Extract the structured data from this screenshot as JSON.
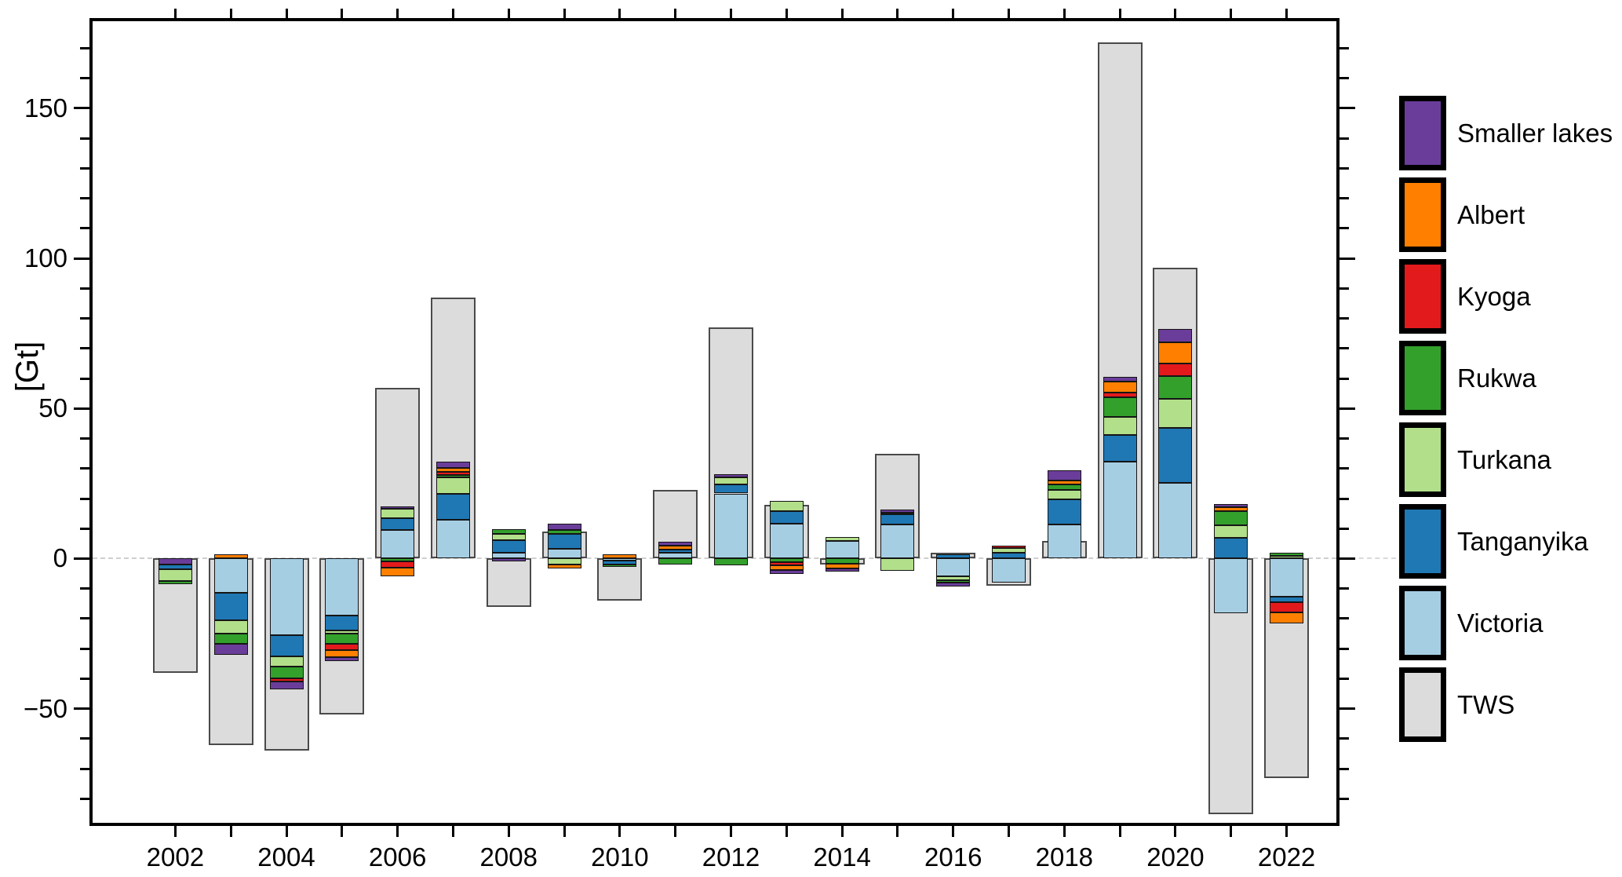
{
  "chart_data": {
    "type": "bar",
    "title": "",
    "xlabel": "",
    "ylabel": "[Gt]",
    "ylim": [
      -88,
      179
    ],
    "grid": "zero-line-dashed-only",
    "legend_position": "right-outside",
    "yticks_major": [
      {
        "value": 150,
        "label": "150"
      },
      {
        "value": 100,
        "label": "100"
      },
      {
        "value": 50,
        "label": "50"
      },
      {
        "value": 0,
        "label": "0"
      },
      {
        "value": -50,
        "label": "−50"
      }
    ],
    "ytick_minor_values": [
      170,
      160,
      140,
      130,
      120,
      110,
      90,
      80,
      70,
      60,
      40,
      30,
      20,
      10,
      -10,
      -20,
      -30,
      -40,
      -60,
      -70,
      -80
    ],
    "xtick_label_years": [
      2002,
      2004,
      2006,
      2008,
      2010,
      2012,
      2014,
      2016,
      2018,
      2020,
      2022
    ],
    "series_colors": {
      "Smaller lakes": "#6A3D9A",
      "Albert": "#FF7F00",
      "Kyoga": "#E31A1C",
      "Rukwa": "#33A02C",
      "Turkana": "#B2DF8A",
      "Tanganyika": "#1F78B4",
      "Victoria": "#A6CEE3",
      "TWS": "#DCDCDC"
    },
    "note": "Each year shows a wide grey TWS bar with a narrower stacked lake-storage bar in front. pos/neg segment lists are ordered outward from the zero line. Units Gt.",
    "years": [
      {
        "year": 2002,
        "tws": -38,
        "pos": [],
        "neg": [
          [
            "Smaller lakes",
            2.0
          ],
          [
            "Tanganyika",
            1.5
          ],
          [
            "Turkana",
            4.0
          ],
          [
            "Rukwa",
            1.0
          ]
        ]
      },
      {
        "year": 2003,
        "tws": -62,
        "pos": [
          [
            "Albert",
            1.5
          ]
        ],
        "neg": [
          [
            "Victoria",
            11.5
          ],
          [
            "Tanganyika",
            9.0
          ],
          [
            "Turkana",
            4.5
          ],
          [
            "Rukwa",
            3.5
          ],
          [
            "Smaller lakes",
            3.5
          ]
        ]
      },
      {
        "year": 2004,
        "tws": -64,
        "pos": [],
        "neg": [
          [
            "Victoria",
            25.5
          ],
          [
            "Tanganyika",
            7.0
          ],
          [
            "Turkana",
            3.5
          ],
          [
            "Rukwa",
            4.0
          ],
          [
            "Kyoga",
            1.0
          ],
          [
            "Smaller lakes",
            2.5
          ]
        ]
      },
      {
        "year": 2005,
        "tws": -52,
        "pos": [],
        "neg": [
          [
            "Victoria",
            19.0
          ],
          [
            "Tanganyika",
            5.0
          ],
          [
            "Turkana",
            1.0
          ],
          [
            "Rukwa",
            3.5
          ],
          [
            "Kyoga",
            2.0
          ],
          [
            "Albert",
            2.2
          ],
          [
            "Smaller lakes",
            1.5
          ]
        ]
      },
      {
        "year": 2006,
        "tws": 57,
        "pos": [
          [
            "Victoria",
            9.5
          ],
          [
            "Tanganyika",
            4.0
          ],
          [
            "Turkana",
            3.0
          ],
          [
            "Smaller lakes",
            1.0
          ]
        ],
        "neg": [
          [
            "Rukwa",
            1.0
          ],
          [
            "Kyoga",
            2.0
          ],
          [
            "Albert",
            3.0
          ]
        ]
      },
      {
        "year": 2007,
        "tws": 87,
        "pos": [
          [
            "Victoria",
            13.0
          ],
          [
            "Tanganyika",
            8.5
          ],
          [
            "Turkana",
            5.5
          ],
          [
            "Rukwa",
            0.8
          ],
          [
            "Kyoga",
            1.2
          ],
          [
            "Albert",
            1.3
          ],
          [
            "Smaller lakes",
            2.1
          ]
        ],
        "neg": []
      },
      {
        "year": 2008,
        "tws": -16,
        "pos": [
          [
            "Victoria",
            1.9
          ],
          [
            "Tanganyika",
            4.3
          ],
          [
            "Turkana",
            2.1
          ],
          [
            "Rukwa",
            1.5
          ]
        ],
        "neg": [
          [
            "Smaller lakes",
            0.9
          ]
        ]
      },
      {
        "year": 2009,
        "tws": 9,
        "pos": [
          [
            "Victoria",
            3.2
          ],
          [
            "Tanganyika",
            5.1
          ],
          [
            "Rukwa",
            1.2
          ],
          [
            "Smaller lakes",
            2.2
          ]
        ],
        "neg": [
          [
            "Turkana",
            2.0
          ],
          [
            "Albert",
            1.3
          ]
        ]
      },
      {
        "year": 2010,
        "tws": -14,
        "pos": [
          [
            "Albert",
            1.4
          ]
        ],
        "neg": [
          [
            "Victoria",
            0.6
          ],
          [
            "Tanganyika",
            1.3
          ],
          [
            "Rukwa",
            0.9
          ]
        ]
      },
      {
        "year": 2011,
        "tws": 23,
        "pos": [
          [
            "Victoria",
            2.0
          ],
          [
            "Tanganyika",
            1.0
          ],
          [
            "Albert",
            1.2
          ],
          [
            "Smaller lakes",
            1.5
          ]
        ],
        "neg": [
          [
            "Rukwa",
            2.0
          ]
        ]
      },
      {
        "year": 2012,
        "tws": 77,
        "pos": [
          [
            "Victoria",
            21.7
          ],
          [
            "Tanganyika",
            3.1
          ],
          [
            "Turkana",
            2.3
          ],
          [
            "Smaller lakes",
            1.0
          ]
        ],
        "neg": [
          [
            "Rukwa",
            2.2
          ]
        ]
      },
      {
        "year": 2013,
        "tws": 18,
        "pos": [
          [
            "Victoria",
            11.7
          ],
          [
            "Tanganyika",
            4.1
          ],
          [
            "Turkana",
            3.5
          ]
        ],
        "neg": [
          [
            "Rukwa",
            1.1
          ],
          [
            "Kyoga",
            1.0
          ],
          [
            "Albert",
            1.6
          ],
          [
            "Smaller lakes",
            1.3
          ]
        ]
      },
      {
        "year": 2014,
        "tws": -2,
        "pos": [
          [
            "Victoria",
            6.0
          ],
          [
            "Turkana",
            1.2
          ]
        ],
        "neg": [
          [
            "Rukwa",
            1.7
          ],
          [
            "Albert",
            1.5
          ],
          [
            "Smaller lakes",
            1.0
          ]
        ]
      },
      {
        "year": 2015,
        "tws": 35,
        "pos": [
          [
            "Victoria",
            11.5
          ],
          [
            "Tanganyika",
            3.2
          ],
          [
            "Kyoga",
            0.7
          ],
          [
            "Smaller lakes",
            1.0
          ]
        ],
        "neg": [
          [
            "Turkana",
            4.1
          ]
        ]
      },
      {
        "year": 2016,
        "tws": 2,
        "pos": [
          [
            "Tanganyika",
            1.5
          ]
        ],
        "neg": [
          [
            "Victoria",
            6.0
          ],
          [
            "Turkana",
            1.1
          ],
          [
            "Rukwa",
            0.8
          ],
          [
            "Smaller lakes",
            1.5
          ]
        ]
      },
      {
        "year": 2017,
        "tws": -9,
        "pos": [
          [
            "Tanganyika",
            1.9
          ],
          [
            "Turkana",
            1.5
          ],
          [
            "Kyoga",
            0.9
          ]
        ],
        "neg": [
          [
            "Victoria",
            8.0
          ]
        ]
      },
      {
        "year": 2018,
        "tws": 6,
        "pos": [
          [
            "Victoria",
            11.3
          ],
          [
            "Tanganyika",
            8.4
          ],
          [
            "Turkana",
            3.2
          ],
          [
            "Rukwa",
            1.7
          ],
          [
            "Albert",
            1.5
          ],
          [
            "Smaller lakes",
            3.2
          ]
        ],
        "neg": []
      },
      {
        "year": 2019,
        "tws": 172,
        "pos": [
          [
            "Victoria",
            32.3
          ],
          [
            "Tanganyika",
            8.9
          ],
          [
            "Turkana",
            6.0
          ],
          [
            "Rukwa",
            6.5
          ],
          [
            "Kyoga",
            1.5
          ],
          [
            "Albert",
            3.8
          ],
          [
            "Smaller lakes",
            1.5
          ]
        ],
        "neg": []
      },
      {
        "year": 2020,
        "tws": 97,
        "pos": [
          [
            "Victoria",
            25.2
          ],
          [
            "Tanganyika",
            18.3
          ],
          [
            "Turkana",
            9.6
          ],
          [
            "Rukwa",
            7.8
          ],
          [
            "Kyoga",
            4.2
          ],
          [
            "Albert",
            7.0
          ],
          [
            "Smaller lakes",
            4.5
          ]
        ],
        "neg": []
      },
      {
        "year": 2021,
        "tws": -85,
        "pos": [
          [
            "Tanganyika",
            7.0
          ],
          [
            "Turkana",
            4.2
          ],
          [
            "Rukwa",
            4.5
          ],
          [
            "Albert",
            1.3
          ],
          [
            "Smaller lakes",
            1.1
          ]
        ],
        "neg": [
          [
            "Victoria",
            18.1
          ]
        ]
      },
      {
        "year": 2022,
        "tws": -73,
        "pos": [
          [
            "Turkana",
            0.8
          ],
          [
            "Rukwa",
            1.2
          ]
        ],
        "neg": [
          [
            "Victoria",
            12.6
          ],
          [
            "Tanganyika",
            2.0
          ],
          [
            "Kyoga",
            3.2
          ],
          [
            "Albert",
            3.9
          ]
        ]
      }
    ]
  },
  "legend": {
    "entries": [
      {
        "label": "Smaller lakes",
        "color": "#6A3D9A"
      },
      {
        "label": "Albert",
        "color": "#FF7F00"
      },
      {
        "label": "Kyoga",
        "color": "#E31A1C"
      },
      {
        "label": "Rukwa",
        "color": "#33A02C"
      },
      {
        "label": "Turkana",
        "color": "#B2DF8A"
      },
      {
        "label": "Tanganyika",
        "color": "#1F78B4"
      },
      {
        "label": "Victoria",
        "color": "#A6CEE3"
      },
      {
        "label": "TWS",
        "color": "#DCDCDC"
      }
    ]
  }
}
